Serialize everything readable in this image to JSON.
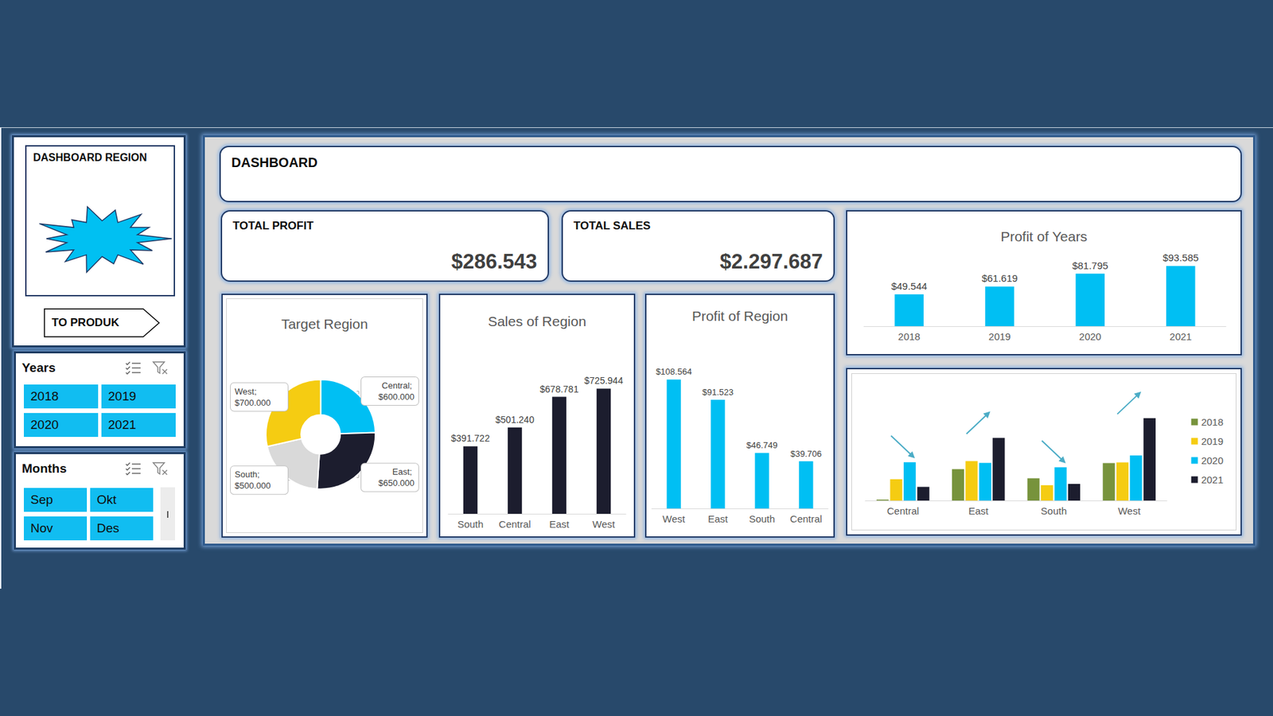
{
  "sidebar": {
    "title": "DASHBOARD REGION",
    "button": "TO PRODUK",
    "slicers": [
      {
        "title": "Years",
        "items": [
          "2018",
          "2019",
          "2020",
          "2021"
        ]
      },
      {
        "title": "Months",
        "items": [
          "Sep",
          "Okt",
          "Nov",
          "Des"
        ]
      }
    ]
  },
  "header": {
    "title": "DASHBOARD"
  },
  "kpis": [
    {
      "title": "TOTAL PROFIT",
      "value": "$286.543"
    },
    {
      "title": "TOTAL SALES",
      "value": "$2.297.687"
    }
  ],
  "chart_data": [
    {
      "type": "pie",
      "title": "Target Region",
      "categories": [
        "Central",
        "East",
        "South",
        "West"
      ],
      "values": [
        600000,
        650000,
        500000,
        700000
      ],
      "value_labels": [
        "Central; $600.000",
        "East; $650.000",
        "South; $500.000",
        "West; $700.000"
      ],
      "colors": [
        "#00bff3",
        "#1c1d2e",
        "#d9d9d9",
        "#f5cc12"
      ],
      "data_labels": true
    },
    {
      "type": "bar",
      "title": "Sales of Region",
      "categories": [
        "South",
        "Central",
        "East",
        "West"
      ],
      "values": [
        391722,
        501240,
        678781,
        725944
      ],
      "value_labels": [
        "$391.722",
        "$501.240",
        "$678.781",
        "$725.944"
      ],
      "color": "#1c1d2e",
      "ylim": [
        0,
        800000
      ],
      "grid": false,
      "tick_labels": "x",
      "data_labels": true
    },
    {
      "type": "bar",
      "title": "Profit of Region",
      "categories": [
        "West",
        "East",
        "South",
        "Central"
      ],
      "values": [
        108564,
        91523,
        46749,
        39706
      ],
      "value_labels": [
        "$108.564",
        "$91.523",
        "$46.749",
        "$39.706"
      ],
      "color": "#00bff3",
      "ylim": [
        0,
        120000
      ],
      "grid": false,
      "tick_labels": "x",
      "data_labels": true
    },
    {
      "type": "bar",
      "title": "Profit of Years",
      "categories": [
        "2018",
        "2019",
        "2020",
        "2021"
      ],
      "values": [
        49544,
        61619,
        81795,
        93585
      ],
      "value_labels": [
        "$49.544",
        "$61.619",
        "$81.795",
        "$93.585"
      ],
      "color": "#00bff3",
      "ylim": [
        0,
        100000
      ],
      "grid": false,
      "tick_labels": "x",
      "data_labels": true
    },
    {
      "type": "bar",
      "categories": [
        "Central",
        "East",
        "South",
        "West"
      ],
      "series": [
        {
          "name": "2018",
          "color": "#77933c",
          "values": [
            500,
            16800,
            11900,
            20000
          ]
        },
        {
          "name": "2019",
          "color": "#f5cc12",
          "values": [
            11400,
            21100,
            8200,
            20400
          ]
        },
        {
          "name": "2020",
          "color": "#00bff3",
          "values": [
            20500,
            20100,
            17800,
            24100
          ]
        },
        {
          "name": "2021",
          "color": "#1c1d2e",
          "values": [
            7300,
            33500,
            8900,
            44100
          ]
        }
      ],
      "ylim": [
        0,
        50000
      ],
      "grid": false,
      "tick_labels": "x",
      "legend": "right",
      "data_labels": false
    }
  ]
}
